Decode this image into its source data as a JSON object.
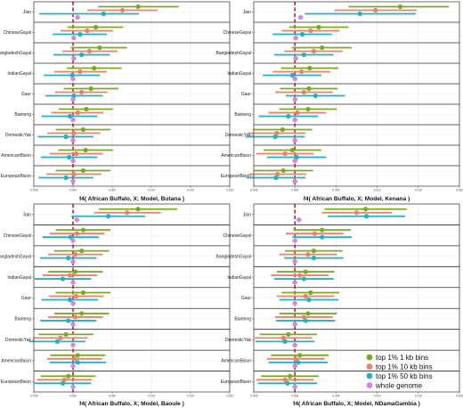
{
  "chart_data": {
    "type": "scatter",
    "categories": [
      "Jian",
      "ChineseGayal",
      "BangladeshGayal",
      "IndianGayal",
      "Gaur",
      "Banteng",
      "DomesticYak",
      "AmericanBison",
      "EuropeanBison"
    ],
    "xlim": [
      -0.005,
      0.02
    ],
    "xticks": [
      -0.005,
      0.0,
      0.005,
      0.01,
      0.015,
      0.02
    ],
    "xtick_labels": [
      "-0.005",
      "0.000",
      "0.005",
      "0.010",
      "0.015",
      "0.020"
    ],
    "reference_line_x": 0.0,
    "grid": true,
    "legend_position": "bottom-right",
    "series": [
      {
        "name": "top 1% 1 kb bins",
        "color": "#7aab1f"
      },
      {
        "name": "top 1% 10 kb bins",
        "color": "#ee7f6a"
      },
      {
        "name": "top 1% 50 kb bins",
        "color": "#1fb3bf"
      },
      {
        "name": "whole genome",
        "color": "#d385e3"
      }
    ],
    "panels": [
      {
        "title": "f4( African Buffalo, X; Model, Butana )",
        "rows": [
          [
            [
              0.0083,
              0.0032,
              0.0135
            ],
            [
              0.0063,
              0.0018,
              0.0108
            ],
            [
              0.0039,
              -0.0043,
              0.0084
            ],
            [
              0.00058,
              0.0003,
              0.0009
            ]
          ],
          [
            [
              0.0029,
              -0.0007,
              0.0064
            ],
            [
              0.0018,
              -0.0016,
              0.0051
            ],
            [
              0.0009,
              -0.0026,
              0.0043
            ],
            [
              0.0001,
              -0.0002,
              0.0004
            ]
          ],
          [
            [
              0.0034,
              -0.0003,
              0.0069
            ],
            [
              0.0021,
              -0.0014,
              0.0057
            ],
            [
              0.0011,
              -0.0025,
              0.0047
            ],
            [
              0.0001,
              -0.0002,
              0.0004
            ]
          ],
          [
            [
              0.0027,
              -0.0008,
              0.0062
            ],
            [
              0.0009,
              -0.0024,
              0.0043
            ],
            [
              -0.0001,
              -0.0037,
              0.0034
            ],
            [
              0.0,
              -0.0003,
              0.0003
            ]
          ],
          [
            [
              0.0023,
              -0.0012,
              0.0058
            ],
            [
              0.0011,
              -0.0023,
              0.0044
            ],
            [
              0.0001,
              -0.0035,
              0.0038
            ],
            [
              0.0,
              -0.0003,
              0.0003
            ]
          ],
          [
            [
              0.0017,
              -0.0018,
              0.0051
            ],
            [
              0.0006,
              -0.0028,
              0.0039
            ],
            [
              -0.0004,
              -0.004,
              0.0031
            ],
            [
              0.0,
              -0.0003,
              0.0003
            ]
          ],
          [
            [
              0.0013,
              -0.0022,
              0.0048
            ],
            [
              0.0001,
              -0.0033,
              0.0035
            ],
            [
              -0.0009,
              -0.0045,
              0.0026
            ],
            [
              0.0,
              -0.0003,
              0.0003
            ]
          ],
          [
            [
              0.0016,
              -0.0019,
              0.0051
            ],
            [
              0.0004,
              -0.003,
              0.0038
            ],
            [
              -0.0005,
              -0.0041,
              0.0031
            ],
            [
              0.0,
              -0.0003,
              0.0003
            ]
          ],
          [
            [
              0.0013,
              -0.0022,
              0.0048
            ],
            [
              0.0001,
              -0.0034,
              0.0036
            ],
            [
              -0.0009,
              -0.0044,
              0.0026
            ],
            [
              0.0,
              -0.0003,
              0.0003
            ]
          ]
        ]
      },
      {
        "title": "f4( African Buffalo, X; Model, Kenana )",
        "rows": [
          [
            [
              0.0128,
              0.0065,
              0.0187
            ],
            [
              0.0098,
              0.0048,
              0.0148
            ],
            [
              0.0079,
              0.0012,
              0.0147
            ],
            [
              0.00068,
              0.0004,
              0.001
            ]
          ],
          [
            [
              0.0029,
              -0.0007,
              0.0065
            ],
            [
              0.0019,
              -0.0016,
              0.0054
            ],
            [
              0.0009,
              -0.0027,
              0.0045
            ],
            [
              0.0001,
              -0.0002,
              0.0004
            ]
          ],
          [
            [
              0.0033,
              -0.0004,
              0.0069
            ],
            [
              0.0023,
              -0.0013,
              0.0058
            ],
            [
              0.0011,
              -0.0025,
              0.0047
            ],
            [
              0.0001,
              -0.0002,
              0.0004
            ]
          ],
          [
            [
              0.0018,
              -0.0017,
              0.0053
            ],
            [
              0.0008,
              -0.0027,
              0.0043
            ],
            [
              -0.0003,
              -0.0039,
              0.0032
            ],
            [
              0.0,
              -0.0003,
              0.0003
            ]
          ],
          [
            [
              0.0017,
              -0.0018,
              0.0052
            ],
            [
              0.0011,
              -0.0024,
              0.0046
            ],
            [
              0.0025,
              -0.0011,
              0.0061
            ],
            [
              0.0,
              -0.0003,
              0.0003
            ]
          ],
          [
            [
              0.0016,
              -0.0019,
              0.0051
            ],
            [
              0.0003,
              -0.0032,
              0.0038
            ],
            [
              -0.0008,
              -0.0044,
              0.0028
            ],
            [
              0.0,
              -0.0003,
              0.0003
            ]
          ],
          [
            [
              -0.0015,
              -0.0051,
              0.0021
            ],
            [
              -0.0022,
              -0.0057,
              0.0013
            ],
            [
              -0.0024,
              -0.006,
              0.0012
            ],
            [
              0.0,
              -0.0003,
              0.0003
            ]
          ],
          [
            [
              -0.0003,
              -0.0038,
              0.0032
            ],
            [
              -0.0012,
              -0.0047,
              0.0023
            ],
            [
              0.0002,
              -0.0034,
              0.0038
            ],
            [
              0.0,
              -0.0003,
              0.0003
            ]
          ],
          [
            [
              -0.0014,
              -0.005,
              0.0022
            ],
            [
              -0.0021,
              -0.0056,
              0.0014
            ],
            [
              -0.0023,
              -0.0059,
              0.0013
            ],
            [
              0.0,
              -0.0003,
              0.0003
            ]
          ]
        ]
      },
      {
        "title": "f4( African Buffalo, X; Model, Baoule )",
        "rows": [
          [
            [
              0.0083,
              0.0033,
              0.0133
            ],
            [
              0.0069,
              0.0027,
              0.0112
            ],
            [
              0.0045,
              -0.0002,
              0.0092
            ],
            [
              0.00049,
              0.0002,
              0.0008
            ]
          ],
          [
            [
              0.0013,
              -0.0022,
              0.0048
            ],
            [
              0.0005,
              -0.003,
              0.004
            ],
            [
              -0.0003,
              -0.0039,
              0.0033
            ],
            [
              0.0,
              -0.0003,
              0.0003
            ]
          ],
          [
            [
              0.0011,
              -0.0024,
              0.0046
            ],
            [
              0.0003,
              -0.0032,
              0.0038
            ],
            [
              -0.0006,
              -0.0042,
              0.003
            ],
            [
              0.0,
              -0.0003,
              0.0003
            ]
          ],
          [
            [
              0.0003,
              -0.0032,
              0.0038
            ],
            [
              -0.0004,
              -0.0039,
              0.0031
            ],
            [
              -0.0013,
              -0.0049,
              0.0023
            ],
            [
              0.0,
              -0.0003,
              0.0003
            ]
          ],
          [
            [
              0.0013,
              -0.0022,
              0.0048
            ],
            [
              0.0004,
              -0.0031,
              0.0039
            ],
            [
              -0.0004,
              -0.004,
              0.0032
            ],
            [
              0.0,
              -0.0003,
              0.0003
            ]
          ],
          [
            [
              0.0011,
              -0.0024,
              0.0046
            ],
            [
              0.0003,
              -0.0032,
              0.0038
            ],
            [
              -0.0006,
              -0.0042,
              0.003
            ],
            [
              0.0,
              -0.0003,
              0.0003
            ]
          ],
          [
            [
              -0.0009,
              -0.0044,
              0.0026
            ],
            [
              -0.0016,
              -0.0051,
              0.0019
            ],
            [
              -0.002,
              -0.0056,
              0.0016
            ],
            [
              0.0,
              -0.0003,
              0.0003
            ]
          ],
          [
            [
              0.0006,
              -0.0029,
              0.0041
            ],
            [
              0.0002,
              -0.0033,
              0.0037
            ],
            [
              0.0006,
              -0.003,
              0.0042
            ],
            [
              0.0,
              -0.0003,
              0.0003
            ]
          ],
          [
            [
              -0.0006,
              -0.0041,
              0.0029
            ],
            [
              -0.0011,
              -0.0046,
              0.0024
            ],
            [
              -0.0013,
              -0.0049,
              0.0023
            ],
            [
              0.0,
              -0.0003,
              0.0003
            ]
          ]
        ]
      },
      {
        "title": "f4( African Buffalo, X; Model, NDamaGambia )",
        "rows": [
          [
            [
              0.0086,
              0.0036,
              0.0136
            ],
            [
              0.0075,
              0.0033,
              0.0118
            ],
            [
              0.0087,
              0.004,
              0.0134
            ],
            [
              0.00049,
              0.0002,
              0.0008
            ]
          ],
          [
            [
              0.0033,
              -0.0002,
              0.0068
            ],
            [
              0.0024,
              -0.0011,
              0.0059
            ],
            [
              0.0033,
              -0.0003,
              0.0069
            ],
            [
              0.0,
              -0.0003,
              0.0003
            ]
          ],
          [
            [
              0.0023,
              -0.0012,
              0.0058
            ],
            [
              0.0016,
              -0.0019,
              0.0051
            ],
            [
              0.0023,
              -0.0013,
              0.0059
            ],
            [
              0.0,
              -0.0003,
              0.0003
            ]
          ],
          [
            [
              0.0013,
              -0.0022,
              0.0048
            ],
            [
              0.0006,
              -0.0029,
              0.0041
            ],
            [
              0.0011,
              -0.0025,
              0.0047
            ],
            [
              0.0,
              -0.0003,
              0.0003
            ]
          ],
          [
            [
              0.0019,
              -0.0016,
              0.0054
            ],
            [
              0.0013,
              -0.0022,
              0.0048
            ],
            [
              0.0017,
              -0.0019,
              0.0053
            ],
            [
              0.0,
              -0.0003,
              0.0003
            ]
          ],
          [
            [
              0.0016,
              -0.0019,
              0.0051
            ],
            [
              0.0011,
              -0.0024,
              0.0046
            ],
            [
              0.0013,
              -0.0023,
              0.0049
            ],
            [
              0.0,
              -0.0003,
              0.0003
            ]
          ],
          [
            [
              -0.0008,
              -0.0043,
              0.0027
            ],
            [
              -0.0014,
              -0.0049,
              0.0021
            ],
            [
              -0.0012,
              -0.0048,
              0.0024
            ],
            [
              0.0,
              -0.0003,
              0.0003
            ]
          ],
          [
            [
              0.0006,
              -0.0029,
              0.0041
            ],
            [
              0.0001,
              -0.0034,
              0.0036
            ],
            [
              0.0004,
              -0.0032,
              0.004
            ],
            [
              0.0,
              -0.0003,
              0.0003
            ]
          ],
          [
            [
              -0.0006,
              -0.0041,
              0.0029
            ],
            [
              -0.0012,
              -0.0047,
              0.0023
            ],
            [
              -0.0009,
              -0.0045,
              0.0027
            ],
            [
              0.0,
              -0.0003,
              0.0003
            ]
          ]
        ]
      }
    ]
  }
}
